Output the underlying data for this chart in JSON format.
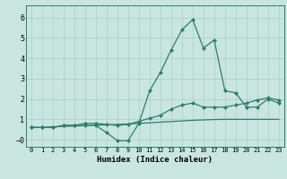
{
  "xlabel": "Humidex (Indice chaleur)",
  "x": [
    0,
    1,
    2,
    3,
    4,
    5,
    6,
    7,
    8,
    9,
    10,
    11,
    12,
    13,
    14,
    15,
    16,
    17,
    18,
    19,
    20,
    21,
    22,
    23
  ],
  "line_peak": [
    0.6,
    0.6,
    0.6,
    0.7,
    0.7,
    0.7,
    0.7,
    0.35,
    -0.05,
    -0.05,
    0.8,
    2.4,
    3.3,
    4.4,
    5.4,
    5.9,
    4.5,
    4.9,
    2.4,
    2.3,
    1.6,
    1.6,
    2.0,
    1.8
  ],
  "line_grad": [
    0.6,
    0.6,
    0.6,
    0.7,
    0.7,
    0.8,
    0.8,
    0.75,
    0.7,
    0.75,
    0.9,
    1.05,
    1.2,
    1.5,
    1.7,
    1.8,
    1.6,
    1.6,
    1.6,
    1.7,
    1.8,
    1.95,
    2.05,
    1.95
  ],
  "line_flat": [
    0.6,
    0.6,
    0.63,
    0.65,
    0.67,
    0.69,
    0.71,
    0.73,
    0.75,
    0.77,
    0.8,
    0.83,
    0.86,
    0.89,
    0.92,
    0.95,
    0.97,
    0.99,
    1.0,
    1.0,
    1.0,
    1.0,
    1.0,
    1.0
  ],
  "line_color": "#2e7d6e",
  "bg_color": "#c8e6df",
  "grid_color": "#a8cec8",
  "ylim": [
    -0.35,
    6.6
  ],
  "xlim": [
    -0.5,
    23.5
  ],
  "yticks": [
    0,
    1,
    2,
    3,
    4,
    5,
    6
  ],
  "xticks": [
    0,
    1,
    2,
    3,
    4,
    5,
    6,
    7,
    8,
    9,
    10,
    11,
    12,
    13,
    14,
    15,
    16,
    17,
    18,
    19,
    20,
    21,
    22,
    23
  ]
}
